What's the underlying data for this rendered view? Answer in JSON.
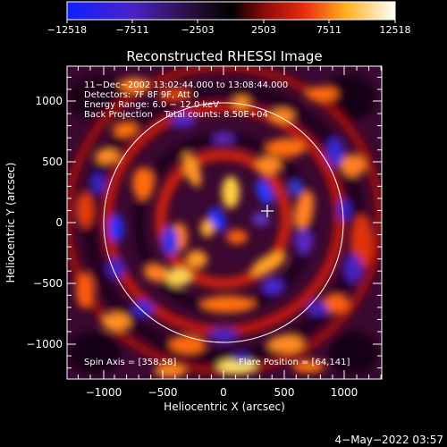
{
  "colorbar": {
    "ticks": [
      "−12518",
      "−7511",
      "−2503",
      "2503",
      "7511",
      "12518"
    ]
  },
  "title": "Reconstructed RHESSI Image",
  "info": {
    "line1": "11−Dec−2002 13:02:44.000 to 13:08:44.000",
    "line2": "Detectors: 7F 8F 9F, Att 0",
    "line3": "Energy Range: 6.0 − 12.0 keV",
    "line4": "Back Projection    Total counts: 8.50E+04"
  },
  "spin_axis": "Spin Axis = [358,58]",
  "flare_position": "Flare Position = [64,141]",
  "axes": {
    "xlabel": "Heliocentric X (arcsec)",
    "ylabel": "Heliocentric Y (arcsec)",
    "xticks": [
      "−1000",
      "−500",
      "0",
      "500",
      "1000"
    ],
    "yticks": [
      "1000",
      "500",
      "0",
      "−500",
      "−1000"
    ]
  },
  "footer_date": "4−May−2022 03:57",
  "colors": {
    "background": "#000000",
    "text": "#ffffff",
    "colormap_low": "#0000ff",
    "colormap_mid": "#000000",
    "colormap_high": "#ffffff"
  }
}
